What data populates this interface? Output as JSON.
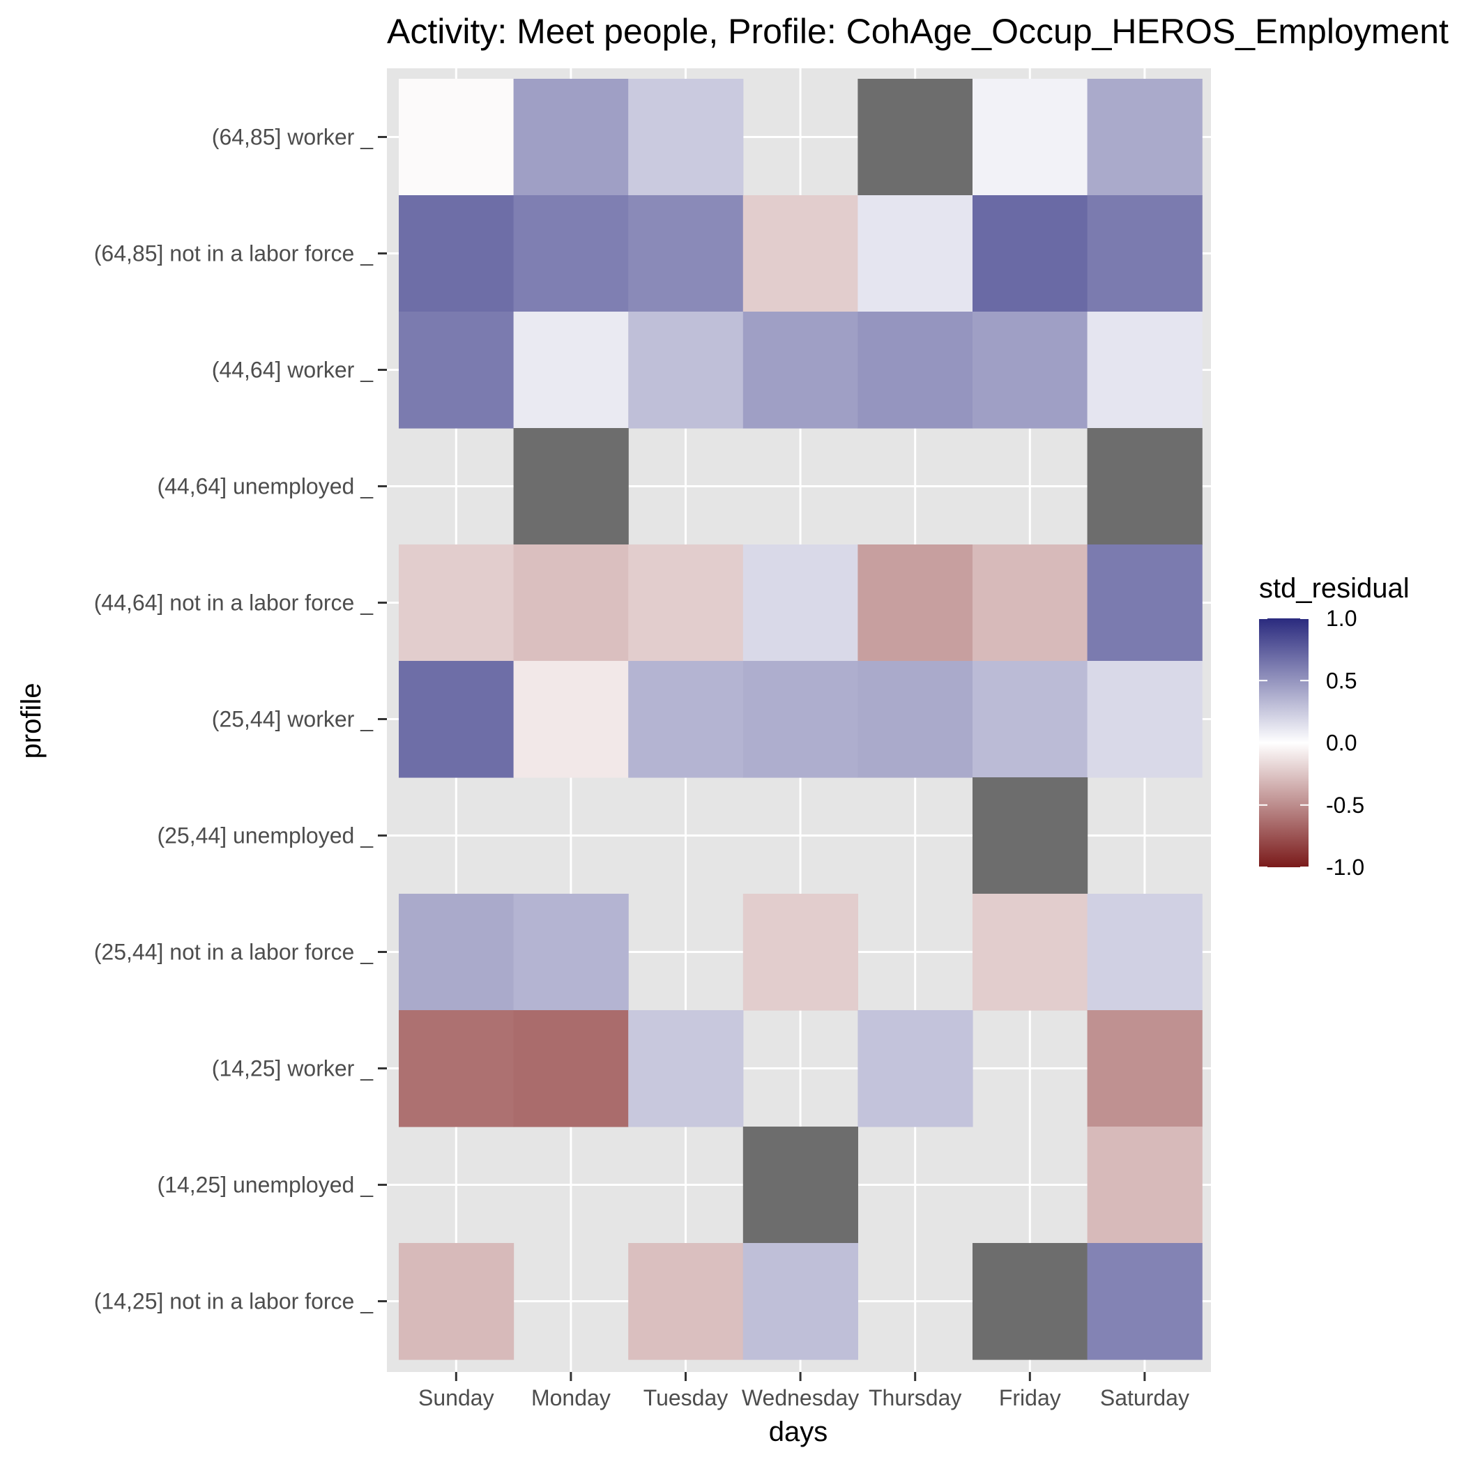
{
  "chart_data": {
    "type": "heatmap",
    "title": "Activity: Meet people, Profile: CohAge_Occup_HEROS_Employment",
    "xlabel": "days",
    "ylabel": "profile",
    "x_categories": [
      "Sunday",
      "Monday",
      "Tuesday",
      "Wednesday",
      "Thursday",
      "Friday",
      "Saturday"
    ],
    "y_categories": [
      "(64,85] worker _",
      "(64,85] not in a labor force _",
      "(44,64] worker _",
      "(44,64] unemployed _",
      "(44,64] not in a labor force _",
      "(25,44] worker _",
      "(25,44] unemployed _",
      "(25,44] not in a labor force _",
      "(14,25] worker _",
      "(14,25] unemployed _",
      "(14,25] not in a labor force _"
    ],
    "values": [
      [
        -0.02,
        0.45,
        0.25,
        null,
        "NA",
        0.06,
        0.4
      ],
      [
        0.68,
        0.6,
        0.55,
        -0.22,
        0.12,
        0.7,
        0.62
      ],
      [
        0.62,
        0.1,
        0.3,
        0.45,
        0.5,
        0.45,
        0.12
      ],
      [
        null,
        "NA",
        null,
        null,
        null,
        null,
        "NA"
      ],
      [
        -0.22,
        -0.28,
        -0.22,
        0.18,
        -0.42,
        -0.3,
        0.62
      ],
      [
        0.68,
        -0.1,
        0.35,
        0.38,
        0.4,
        0.32,
        0.18
      ],
      [
        null,
        null,
        null,
        null,
        null,
        "NA",
        null
      ],
      [
        0.4,
        0.35,
        null,
        -0.22,
        null,
        -0.22,
        0.22
      ],
      [
        -0.62,
        -0.64,
        0.26,
        null,
        0.28,
        null,
        -0.48
      ],
      [
        null,
        null,
        null,
        "NA",
        null,
        null,
        -0.3
      ],
      [
        -0.3,
        null,
        -0.28,
        0.3,
        null,
        "NA",
        0.58
      ]
    ],
    "na_color": "#6d6d6d",
    "panel_background": "#e5e5e5",
    "grid": true,
    "legend": {
      "title": "std_residual",
      "position": "right",
      "limits": [
        -1.0,
        1.0
      ],
      "tick_labels": [
        "1.0",
        "0.5",
        "0.0",
        "-0.5",
        "-1.0"
      ],
      "tick_values": [
        1.0,
        0.5,
        0.0,
        -0.5,
        -1.0
      ],
      "low_color": "#7a1a1a",
      "mid_color": "#ffffff",
      "high_color": "#2a2a7e"
    }
  }
}
